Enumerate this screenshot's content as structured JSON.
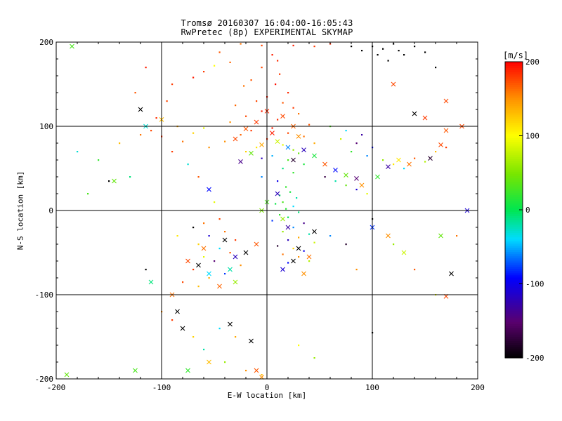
{
  "chart_data": {
    "type": "scatter",
    "title": "Tromsø 20160307 16:04:00-16:05:43",
    "subtitle": "RwPretec (8p) EXPERIMENTAL SKYMAP",
    "xlabel": "E-W location [km]",
    "ylabel": "N-S location [km]",
    "xlim": [
      -200,
      200
    ],
    "ylim": [
      -200,
      200
    ],
    "xticks": [
      "-200",
      "-100",
      "0",
      "100",
      "200"
    ],
    "yticks": [
      "-200",
      "-100",
      "0",
      "100",
      "200"
    ],
    "grid": true,
    "colorbar": {
      "label": "[m/s]",
      "range": [
        -200,
        200
      ],
      "ticks": [
        "200",
        "100",
        "0",
        "-100",
        "-200"
      ],
      "colormap": "rainbow (black-purple-blue-cyan-green-yellow-red)"
    },
    "series": [
      {
        "marker": "dot",
        "points": [
          [
            5,
            185,
            190
          ],
          [
            10,
            178,
            185
          ],
          [
            -5,
            170,
            175
          ],
          [
            12,
            162,
            180
          ],
          [
            -15,
            155,
            170
          ],
          [
            8,
            150,
            195
          ],
          [
            -22,
            148,
            160
          ],
          [
            20,
            140,
            185
          ],
          [
            0,
            135,
            190
          ],
          [
            -10,
            130,
            175
          ],
          [
            15,
            128,
            170
          ],
          [
            -30,
            125,
            165
          ],
          [
            25,
            122,
            180
          ],
          [
            -5,
            118,
            190
          ],
          [
            30,
            115,
            160
          ],
          [
            -20,
            112,
            175
          ],
          [
            10,
            108,
            185
          ],
          [
            -35,
            105,
            150
          ],
          [
            40,
            102,
            170
          ],
          [
            5,
            98,
            190
          ],
          [
            -15,
            95,
            180
          ],
          [
            20,
            92,
            175
          ],
          [
            -25,
            90,
            165
          ],
          [
            35,
            88,
            160
          ],
          [
            0,
            85,
            185
          ],
          [
            -40,
            82,
            150
          ],
          [
            45,
            80,
            140
          ],
          [
            15,
            78,
            90
          ],
          [
            -10,
            75,
            110
          ],
          [
            25,
            72,
            60
          ],
          [
            -20,
            70,
            120
          ],
          [
            30,
            68,
            40
          ],
          [
            5,
            65,
            -50
          ],
          [
            -5,
            62,
            -120
          ],
          [
            20,
            60,
            30
          ],
          [
            35,
            55,
            10
          ],
          [
            15,
            50,
            -10
          ],
          [
            25,
            45,
            20
          ],
          [
            -5,
            40,
            -60
          ],
          [
            10,
            35,
            -100
          ],
          [
            18,
            28,
            20
          ],
          [
            22,
            22,
            10
          ],
          [
            12,
            18,
            0
          ],
          [
            28,
            15,
            -20
          ],
          [
            15,
            10,
            30
          ],
          [
            8,
            8,
            5
          ],
          [
            25,
            5,
            -40
          ],
          [
            18,
            2,
            15
          ],
          [
            30,
            -2,
            -10
          ],
          [
            12,
            -5,
            20
          ],
          [
            20,
            -8,
            0
          ],
          [
            5,
            -12,
            -80
          ],
          [
            35,
            -15,
            -140
          ],
          [
            25,
            -20,
            -60
          ],
          [
            15,
            -25,
            60
          ],
          [
            40,
            -28,
            -20
          ],
          [
            30,
            -32,
            140
          ],
          [
            20,
            -35,
            -120
          ],
          [
            45,
            -38,
            80
          ],
          [
            10,
            -42,
            -180
          ],
          [
            25,
            -45,
            120
          ],
          [
            35,
            -48,
            -100
          ],
          [
            15,
            -52,
            160
          ],
          [
            30,
            -55,
            150
          ],
          [
            40,
            -60,
            70
          ],
          [
            20,
            -62,
            -90
          ],
          [
            -40,
            -25,
            160
          ],
          [
            -55,
            -30,
            -110
          ],
          [
            -30,
            -35,
            180
          ],
          [
            -65,
            -40,
            120
          ],
          [
            -45,
            -45,
            -40
          ],
          [
            -35,
            -50,
            170
          ],
          [
            -60,
            -55,
            90
          ],
          [
            -50,
            -60,
            -150
          ],
          [
            -25,
            -65,
            150
          ],
          [
            -70,
            -70,
            180
          ],
          [
            -40,
            -75,
            -80
          ],
          [
            -55,
            -80,
            140
          ],
          [
            -80,
            -85,
            175
          ],
          [
            -65,
            -90,
            130
          ],
          [
            -60,
            -15,
            160
          ],
          [
            -70,
            -20,
            -200
          ],
          [
            -45,
            -10,
            175
          ],
          [
            -85,
            -30,
            110
          ],
          [
            -50,
            10,
            90
          ],
          [
            -65,
            40,
            170
          ],
          [
            -75,
            55,
            -30
          ],
          [
            -90,
            70,
            180
          ],
          [
            -55,
            75,
            150
          ],
          [
            -80,
            82,
            160
          ],
          [
            -100,
            88,
            185
          ],
          [
            -70,
            92,
            120
          ],
          [
            -110,
            95,
            175
          ],
          [
            -60,
            98,
            90
          ],
          [
            -85,
            100,
            140
          ],
          [
            60,
            100,
            30
          ],
          [
            75,
            95,
            -40
          ],
          [
            90,
            90,
            -130
          ],
          [
            70,
            85,
            80
          ],
          [
            85,
            80,
            -150
          ],
          [
            100,
            75,
            -90
          ],
          [
            80,
            70,
            20
          ],
          [
            95,
            65,
            -60
          ],
          [
            110,
            60,
            60
          ],
          [
            120,
            55,
            110
          ],
          [
            130,
            50,
            -40
          ],
          [
            140,
            62,
            170
          ],
          [
            150,
            58,
            70
          ],
          [
            160,
            70,
            130
          ],
          [
            170,
            75,
            180
          ],
          [
            55,
            40,
            -170
          ],
          [
            65,
            35,
            -20
          ],
          [
            75,
            30,
            40
          ],
          [
            85,
            25,
            -110
          ],
          [
            95,
            20,
            90
          ],
          [
            60,
            -30,
            -60
          ],
          [
            75,
            -40,
            -180
          ],
          [
            85,
            -70,
            150
          ],
          [
            -130,
            40,
            -10
          ],
          [
            -160,
            60,
            20
          ],
          [
            -180,
            70,
            -30
          ],
          [
            -140,
            80,
            130
          ],
          [
            -120,
            90,
            160
          ],
          [
            -105,
            110,
            185
          ],
          [
            -95,
            130,
            175
          ],
          [
            -90,
            150,
            180
          ],
          [
            -115,
            170,
            190
          ],
          [
            -125,
            140,
            170
          ],
          [
            -150,
            35,
            -200
          ],
          [
            -170,
            20,
            30
          ],
          [
            100,
            -10,
            -200
          ],
          [
            120,
            -40,
            60
          ],
          [
            140,
            -70,
            170
          ],
          [
            160,
            -100,
            90
          ],
          [
            180,
            -30,
            160
          ],
          [
            -115,
            -70,
            -200
          ],
          [
            -100,
            -120,
            150
          ],
          [
            -90,
            -130,
            180
          ],
          [
            -70,
            -150,
            120
          ],
          [
            -60,
            -165,
            -20
          ],
          [
            -40,
            -180,
            60
          ],
          [
            -20,
            -190,
            150
          ],
          [
            -5,
            -195,
            130
          ],
          [
            45,
            -175,
            60
          ],
          [
            30,
            -160,
            100
          ],
          [
            -30,
            -150,
            140
          ],
          [
            -45,
            -140,
            -40
          ],
          [
            100,
            -145,
            -200
          ],
          [
            80,
            195,
            -200
          ],
          [
            90,
            190,
            -200
          ],
          [
            100,
            195,
            -200
          ],
          [
            110,
            192,
            -200
          ],
          [
            120,
            198,
            -200
          ],
          [
            130,
            185,
            -200
          ],
          [
            105,
            185,
            -200
          ],
          [
            125,
            190,
            -200
          ],
          [
            140,
            195,
            -200
          ],
          [
            150,
            188,
            -200
          ],
          [
            160,
            170,
            -200
          ],
          [
            115,
            178,
            -200
          ],
          [
            60,
            198,
            185
          ],
          [
            45,
            195,
            180
          ],
          [
            -5,
            196,
            175
          ],
          [
            -25,
            198,
            160
          ],
          [
            25,
            196,
            190
          ],
          [
            -45,
            188,
            170
          ],
          [
            -35,
            176,
            165
          ],
          [
            -60,
            165,
            180
          ],
          [
            -70,
            158,
            190
          ],
          [
            -50,
            172,
            100
          ]
        ]
      },
      {
        "marker": "x",
        "points": [
          [
            0,
            118,
            185
          ],
          [
            15,
            112,
            175
          ],
          [
            -10,
            105,
            180
          ],
          [
            25,
            100,
            165
          ],
          [
            -20,
            97,
            170
          ],
          [
            5,
            92,
            190
          ],
          [
            30,
            88,
            150
          ],
          [
            -30,
            85,
            175
          ],
          [
            10,
            82,
            80
          ],
          [
            -5,
            78,
            140
          ],
          [
            20,
            75,
            -60
          ],
          [
            35,
            72,
            -120
          ],
          [
            -15,
            68,
            40
          ],
          [
            45,
            65,
            10
          ],
          [
            25,
            60,
            -180
          ],
          [
            -25,
            58,
            -140
          ],
          [
            55,
            55,
            170
          ],
          [
            65,
            48,
            -90
          ],
          [
            75,
            42,
            40
          ],
          [
            85,
            38,
            -150
          ],
          [
            90,
            30,
            150
          ],
          [
            105,
            40,
            20
          ],
          [
            115,
            52,
            -130
          ],
          [
            125,
            60,
            110
          ],
          [
            135,
            55,
            160
          ],
          [
            155,
            62,
            -180
          ],
          [
            165,
            78,
            175
          ],
          [
            170,
            95,
            170
          ],
          [
            185,
            100,
            175
          ],
          [
            190,
            0,
            -110
          ],
          [
            120,
            150,
            175
          ],
          [
            140,
            115,
            -200
          ],
          [
            150,
            110,
            180
          ],
          [
            170,
            130,
            175
          ],
          [
            100,
            -20,
            -80
          ],
          [
            115,
            -30,
            150
          ],
          [
            130,
            -50,
            80
          ],
          [
            175,
            -75,
            -200
          ],
          [
            170,
            -102,
            175
          ],
          [
            165,
            -30,
            40
          ],
          [
            -120,
            120,
            -200
          ],
          [
            -115,
            100,
            -30
          ],
          [
            -100,
            108,
            130
          ],
          [
            -110,
            -85,
            -10
          ],
          [
            -90,
            -100,
            160
          ],
          [
            -85,
            -120,
            -200
          ],
          [
            -80,
            -140,
            -200
          ],
          [
            -75,
            -190,
            20
          ],
          [
            -55,
            -180,
            130
          ],
          [
            -35,
            -135,
            -200
          ],
          [
            -15,
            -155,
            -200
          ],
          [
            -10,
            -190,
            170
          ],
          [
            -5,
            -198,
            150
          ],
          [
            -125,
            -190,
            30
          ],
          [
            -145,
            35,
            40
          ],
          [
            -185,
            195,
            30
          ],
          [
            -190,
            -195,
            40
          ],
          [
            -55,
            25,
            -90
          ],
          [
            -40,
            -35,
            -200
          ],
          [
            -30,
            -55,
            -120
          ],
          [
            -20,
            -50,
            -200
          ],
          [
            -10,
            -40,
            170
          ],
          [
            -35,
            -70,
            -20
          ],
          [
            -60,
            -45,
            160
          ],
          [
            -75,
            -60,
            175
          ],
          [
            -65,
            -65,
            -200
          ],
          [
            -55,
            -75,
            -40
          ],
          [
            -45,
            -90,
            165
          ],
          [
            -30,
            -85,
            60
          ],
          [
            30,
            -45,
            -200
          ],
          [
            40,
            -55,
            160
          ],
          [
            25,
            -60,
            -200
          ],
          [
            15,
            -70,
            -110
          ],
          [
            35,
            -75,
            150
          ],
          [
            45,
            -25,
            -200
          ],
          [
            20,
            -20,
            -130
          ],
          [
            10,
            20,
            -120
          ],
          [
            0,
            10,
            30
          ],
          [
            -5,
            0,
            50
          ],
          [
            15,
            -10,
            60
          ]
        ]
      }
    ]
  }
}
